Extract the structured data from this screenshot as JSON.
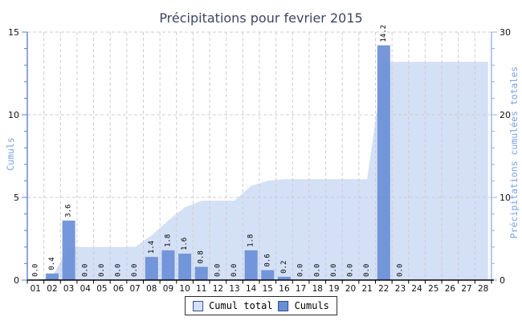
{
  "chart_data": {
    "type": "bar+area",
    "title": "Précipitations pour fevrier 2015",
    "categories": [
      "01",
      "02",
      "03",
      "04",
      "05",
      "06",
      "07",
      "08",
      "09",
      "10",
      "11",
      "12",
      "13",
      "14",
      "15",
      "16",
      "17",
      "18",
      "19",
      "20",
      "21",
      "22",
      "23",
      "24",
      "25",
      "26",
      "27",
      "28"
    ],
    "series": [
      {
        "name": "Cumul total",
        "type": "area",
        "axis": "right",
        "values": [
          0.0,
          0.4,
          4.0,
          4.0,
          4.0,
          4.0,
          4.0,
          5.4,
          7.2,
          8.8,
          9.6,
          9.6,
          9.6,
          11.4,
          12.0,
          12.2,
          12.2,
          12.2,
          12.2,
          12.2,
          12.2,
          26.4,
          26.4,
          26.4,
          26.4,
          26.4,
          26.4,
          26.4
        ]
      },
      {
        "name": "Cumuls",
        "type": "bar",
        "axis": "left",
        "values": [
          0.0,
          0.4,
          3.6,
          0.0,
          0.0,
          0.0,
          0.0,
          1.4,
          1.8,
          1.6,
          0.8,
          0.0,
          0.0,
          1.8,
          0.6,
          0.2,
          0.0,
          0.0,
          0.0,
          0.0,
          0.0,
          14.2,
          0.0,
          null,
          null,
          null,
          null,
          null
        ]
      }
    ],
    "left_axis": {
      "label": "Cumuls",
      "min": 0,
      "max": 15,
      "major": 5,
      "minor": 1
    },
    "right_axis": {
      "label": "Précipitations cumulées totales",
      "min": 0,
      "max": 30,
      "major": 10,
      "minor": 2
    },
    "legend": [
      {
        "label": "Cumul total",
        "color": "#d4e0f6"
      },
      {
        "label": "Cumuls",
        "color": "#6a8ed6"
      }
    ],
    "colors": {
      "bar": "#6a8ed6",
      "area": "#d4e0f6",
      "left_axis": "#5b82d4",
      "right_axis": "#92b4ec",
      "axis_title": "#7ba3e8",
      "grid": "#cdcdcd",
      "x_axis": "#000000",
      "title": "#3d4660",
      "tick_text": "#111111",
      "bar_label_text": "#000000"
    },
    "grid": "dashed",
    "legend_position": "bottom-center"
  }
}
